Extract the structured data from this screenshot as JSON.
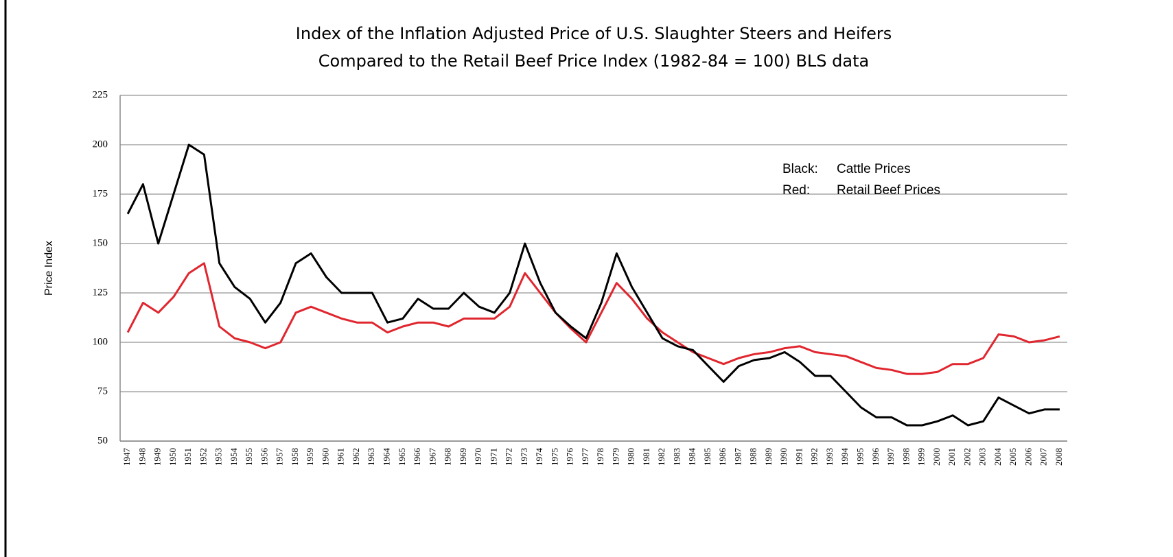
{
  "chart_data": {
    "type": "line",
    "title": "Index of the Inflation Adjusted Price of U.S. Slaughter Steers and Heifers",
    "subtitle": "Compared to the Retail Beef Price Index (1982-84 = 100) BLS data",
    "y_label": "Price Index",
    "categories": [
      "1947",
      "1948",
      "1949",
      "1950",
      "1951",
      "1952",
      "1953",
      "1954",
      "1955",
      "1956",
      "1957",
      "1958",
      "1959",
      "1960",
      "1961",
      "1962",
      "1963",
      "1964",
      "1965",
      "1966",
      "1967",
      "1968",
      "1969",
      "1970",
      "1971",
      "1972",
      "1973",
      "1974",
      "1975",
      "1976",
      "1977",
      "1978",
      "1979",
      "1980",
      "1981",
      "1982",
      "1983",
      "1984",
      "1985",
      "1986",
      "1987",
      "1988",
      "1989",
      "1990",
      "1991",
      "1992",
      "1993",
      "1994",
      "1995",
      "1996",
      "1997",
      "1998",
      "1999",
      "2000",
      "2001",
      "2002",
      "2003",
      "2004",
      "2005",
      "2006",
      "2007",
      "2008"
    ],
    "series": [
      {
        "name": "Cattle Prices",
        "color": "#000000",
        "values": [
          165,
          180,
          150,
          175,
          200,
          195,
          140,
          128,
          122,
          110,
          120,
          140,
          145,
          133,
          125,
          125,
          125,
          110,
          112,
          122,
          117,
          117,
          125,
          118,
          115,
          125,
          150,
          130,
          115,
          108,
          102,
          120,
          145,
          128,
          115,
          102,
          98,
          96,
          88,
          80,
          88,
          91,
          92,
          95,
          90,
          83,
          83,
          75,
          67,
          62,
          62,
          58,
          58,
          60,
          63,
          58,
          60,
          72,
          68,
          64,
          66,
          66
        ]
      },
      {
        "name": "Retail Beef Prices",
        "color": "#e0262e",
        "values": [
          105,
          120,
          115,
          123,
          135,
          140,
          108,
          102,
          100,
          97,
          100,
          115,
          118,
          115,
          112,
          110,
          110,
          105,
          108,
          110,
          110,
          108,
          112,
          112,
          112,
          118,
          135,
          125,
          115,
          107,
          100,
          115,
          130,
          122,
          112,
          105,
          100,
          95,
          92,
          89,
          92,
          94,
          95,
          97,
          98,
          95,
          94,
          93,
          90,
          87,
          86,
          84,
          84,
          85,
          89,
          89,
          92,
          104,
          103,
          100,
          101,
          103
        ]
      }
    ],
    "legend_labels": [
      "Black:",
      "Red:"
    ],
    "ylim": [
      50,
      225
    ],
    "yticks": [
      50,
      75,
      100,
      125,
      150,
      175,
      200,
      225
    ],
    "grid": true
  }
}
